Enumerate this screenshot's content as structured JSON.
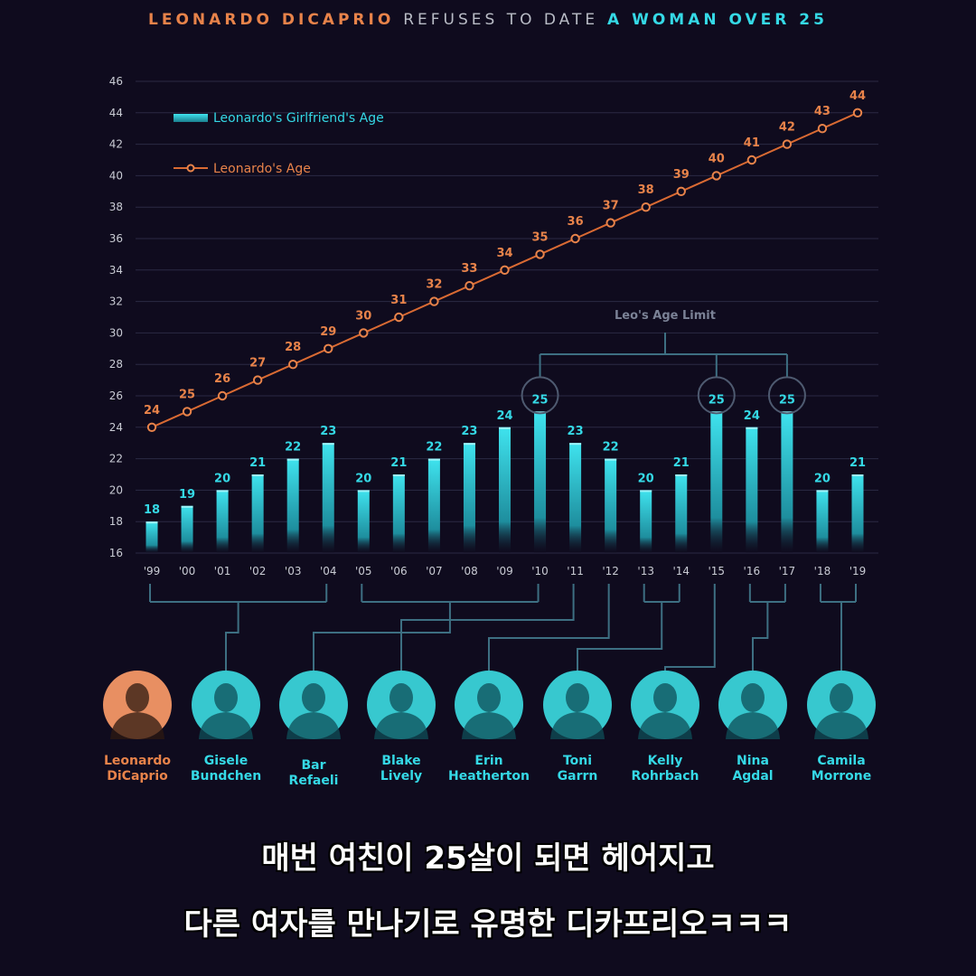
{
  "header": {
    "title_part1": "LEONARDO DICAPRIO",
    "title_part2": "REFUSES TO DATE",
    "title_part3": "A WOMAN OVER 25"
  },
  "colors": {
    "background": "#0f0b1e",
    "orange": "#e8834a",
    "cyan": "#35d9e6",
    "grid": "#2b2a44",
    "connector": "#3d6f82"
  },
  "chart_data": {
    "type": "bar",
    "categories": [
      "'99",
      "'00",
      "'01",
      "'02",
      "'03",
      "'04",
      "'05",
      "'06",
      "'07",
      "'08",
      "'09",
      "'10",
      "'11",
      "'12",
      "'13",
      "'14",
      "'15",
      "'16",
      "'17",
      "'18",
      "'19"
    ],
    "ylim": [
      16,
      46
    ],
    "yticks": [
      16,
      18,
      20,
      22,
      24,
      26,
      28,
      30,
      32,
      34,
      36,
      38,
      40,
      42,
      44,
      46
    ],
    "grid": true,
    "legend_position": "top-left",
    "series": [
      {
        "name": "Leonardo's Girlfriend's Age",
        "type": "bar",
        "color": "#35d9e6",
        "values": [
          18,
          19,
          20,
          21,
          22,
          23,
          20,
          21,
          22,
          23,
          24,
          25,
          23,
          22,
          20,
          21,
          25,
          24,
          25,
          20,
          21
        ]
      },
      {
        "name": "Leonardo's Age",
        "type": "line",
        "color": "#e8834a",
        "values": [
          24,
          25,
          26,
          27,
          28,
          29,
          30,
          31,
          32,
          33,
          34,
          35,
          36,
          37,
          38,
          39,
          40,
          41,
          42,
          43,
          44
        ]
      }
    ],
    "annotation": "Leo's Age Limit",
    "highlighted_indices": [
      11,
      16,
      18
    ]
  },
  "girlfriends": [
    {
      "name": "Leonardo\nDiCaprio",
      "is_leo": true,
      "years": []
    },
    {
      "name": "Gisele\nBundchen",
      "years": [
        0,
        5
      ]
    },
    {
      "name": "Bar\nRefaeli",
      "years": [
        6,
        11
      ]
    },
    {
      "name": "Blake\nLively",
      "years": [
        12
      ]
    },
    {
      "name": "Erin\nHeatherton",
      "years": [
        13
      ]
    },
    {
      "name": "Toni\nGarrn",
      "years": [
        14,
        15
      ]
    },
    {
      "name": "Kelly\nRohrbach",
      "years": [
        16
      ]
    },
    {
      "name": "Nina\nAgdal",
      "years": [
        17,
        18
      ]
    },
    {
      "name": "Camila\nMorrone",
      "years": [
        19,
        20
      ]
    }
  ],
  "caption": {
    "line1": "매번 여친이 25살이 되면 헤어지고",
    "line2": "다른 여자를 만나기로 유명한 디카프리오ㅋㅋㅋ"
  }
}
